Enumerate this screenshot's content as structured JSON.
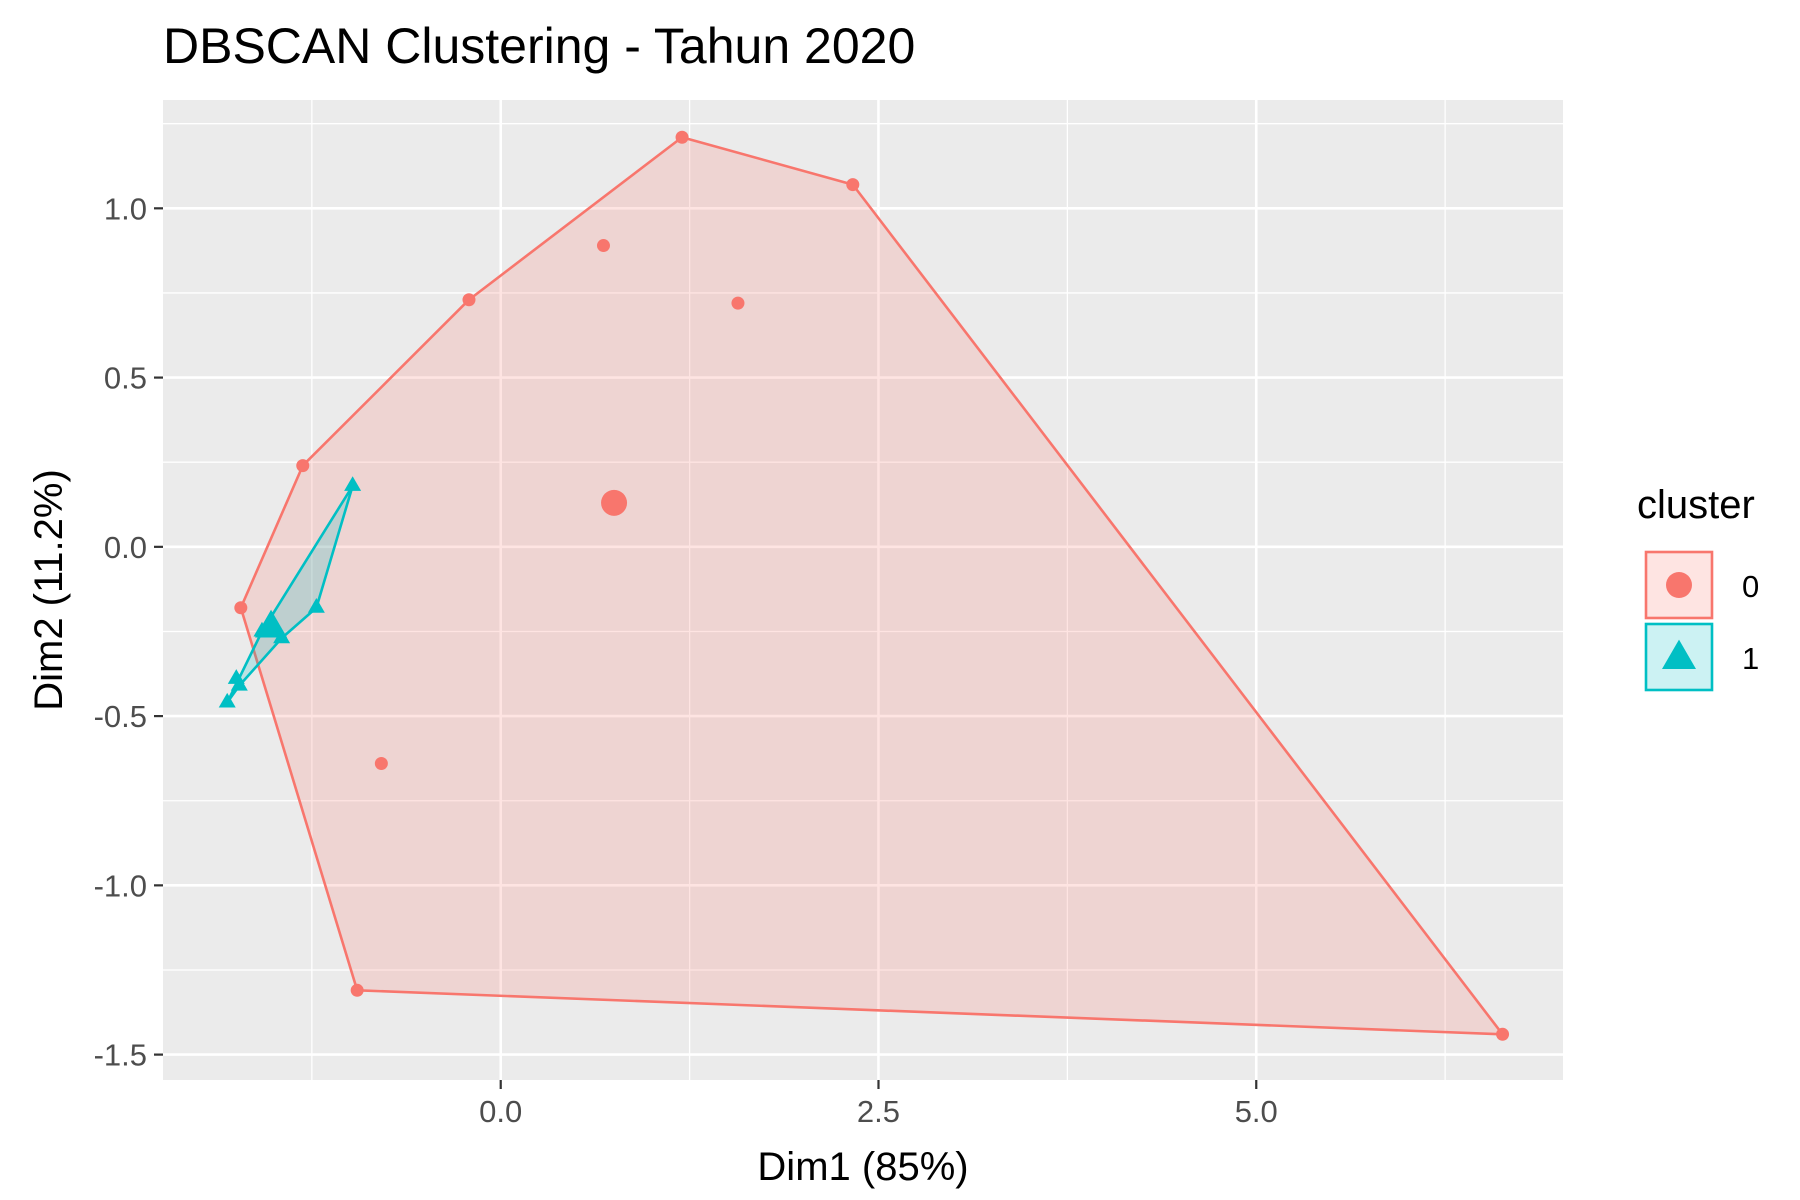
{
  "chart_data": {
    "type": "scatter",
    "title": "DBSCAN Clustering - Tahun 2020",
    "xlabel": "Dim1 (85%)",
    "ylabel": "Dim2 (11.2%)",
    "xlim": [
      -2.235,
      7.03
    ],
    "ylim": [
      -1.575,
      1.32
    ],
    "x_ticks": [
      0.0,
      2.5,
      5.0
    ],
    "x_tick_labels": [
      "0.0",
      "2.5",
      "5.0"
    ],
    "y_ticks": [
      1.0,
      0.5,
      0.0,
      -0.5,
      -1.0,
      -1.5
    ],
    "y_tick_labels": [
      "1.0",
      "0.5",
      "0.0",
      "-0.5",
      "-1.0",
      "-1.5"
    ],
    "grid": true,
    "legend_position": "right",
    "legend_title": "cluster",
    "series": [
      {
        "name": "0",
        "shape": "circle",
        "color": "#F8766D",
        "fill": "rgba(248,118,109,0.2)",
        "points": [
          [
            1.2,
            1.21
          ],
          [
            2.33,
            1.07
          ],
          [
            0.68,
            0.89
          ],
          [
            1.57,
            0.72
          ],
          [
            -0.21,
            0.73
          ],
          [
            -1.31,
            0.24
          ],
          [
            -1.72,
            -0.18
          ],
          [
            -0.79,
            -0.64
          ],
          [
            -0.95,
            -1.31
          ],
          [
            6.63,
            -1.44
          ]
        ],
        "hull": [
          [
            1.2,
            1.21
          ],
          [
            2.33,
            1.07
          ],
          [
            6.63,
            -1.44
          ],
          [
            -0.95,
            -1.31
          ],
          [
            -1.72,
            -0.18
          ],
          [
            -1.31,
            0.24
          ],
          [
            -0.21,
            0.73
          ]
        ],
        "center": [
          0.75,
          0.13
        ]
      },
      {
        "name": "1",
        "shape": "triangle",
        "color": "#00BFC4",
        "fill": "rgba(0,191,196,0.2)",
        "points": [
          [
            -0.98,
            0.18
          ],
          [
            -1.22,
            -0.18
          ],
          [
            -1.45,
            -0.27
          ],
          [
            -1.58,
            -0.25
          ],
          [
            -1.73,
            -0.41
          ],
          [
            -1.75,
            -0.39
          ],
          [
            -1.81,
            -0.46
          ]
        ],
        "hull": [
          [
            -0.98,
            0.18
          ],
          [
            -1.22,
            -0.18
          ],
          [
            -1.45,
            -0.27
          ],
          [
            -1.73,
            -0.41
          ],
          [
            -1.81,
            -0.46
          ],
          [
            -1.58,
            -0.25
          ]
        ],
        "center": [
          -1.52,
          -0.24
        ]
      }
    ]
  }
}
